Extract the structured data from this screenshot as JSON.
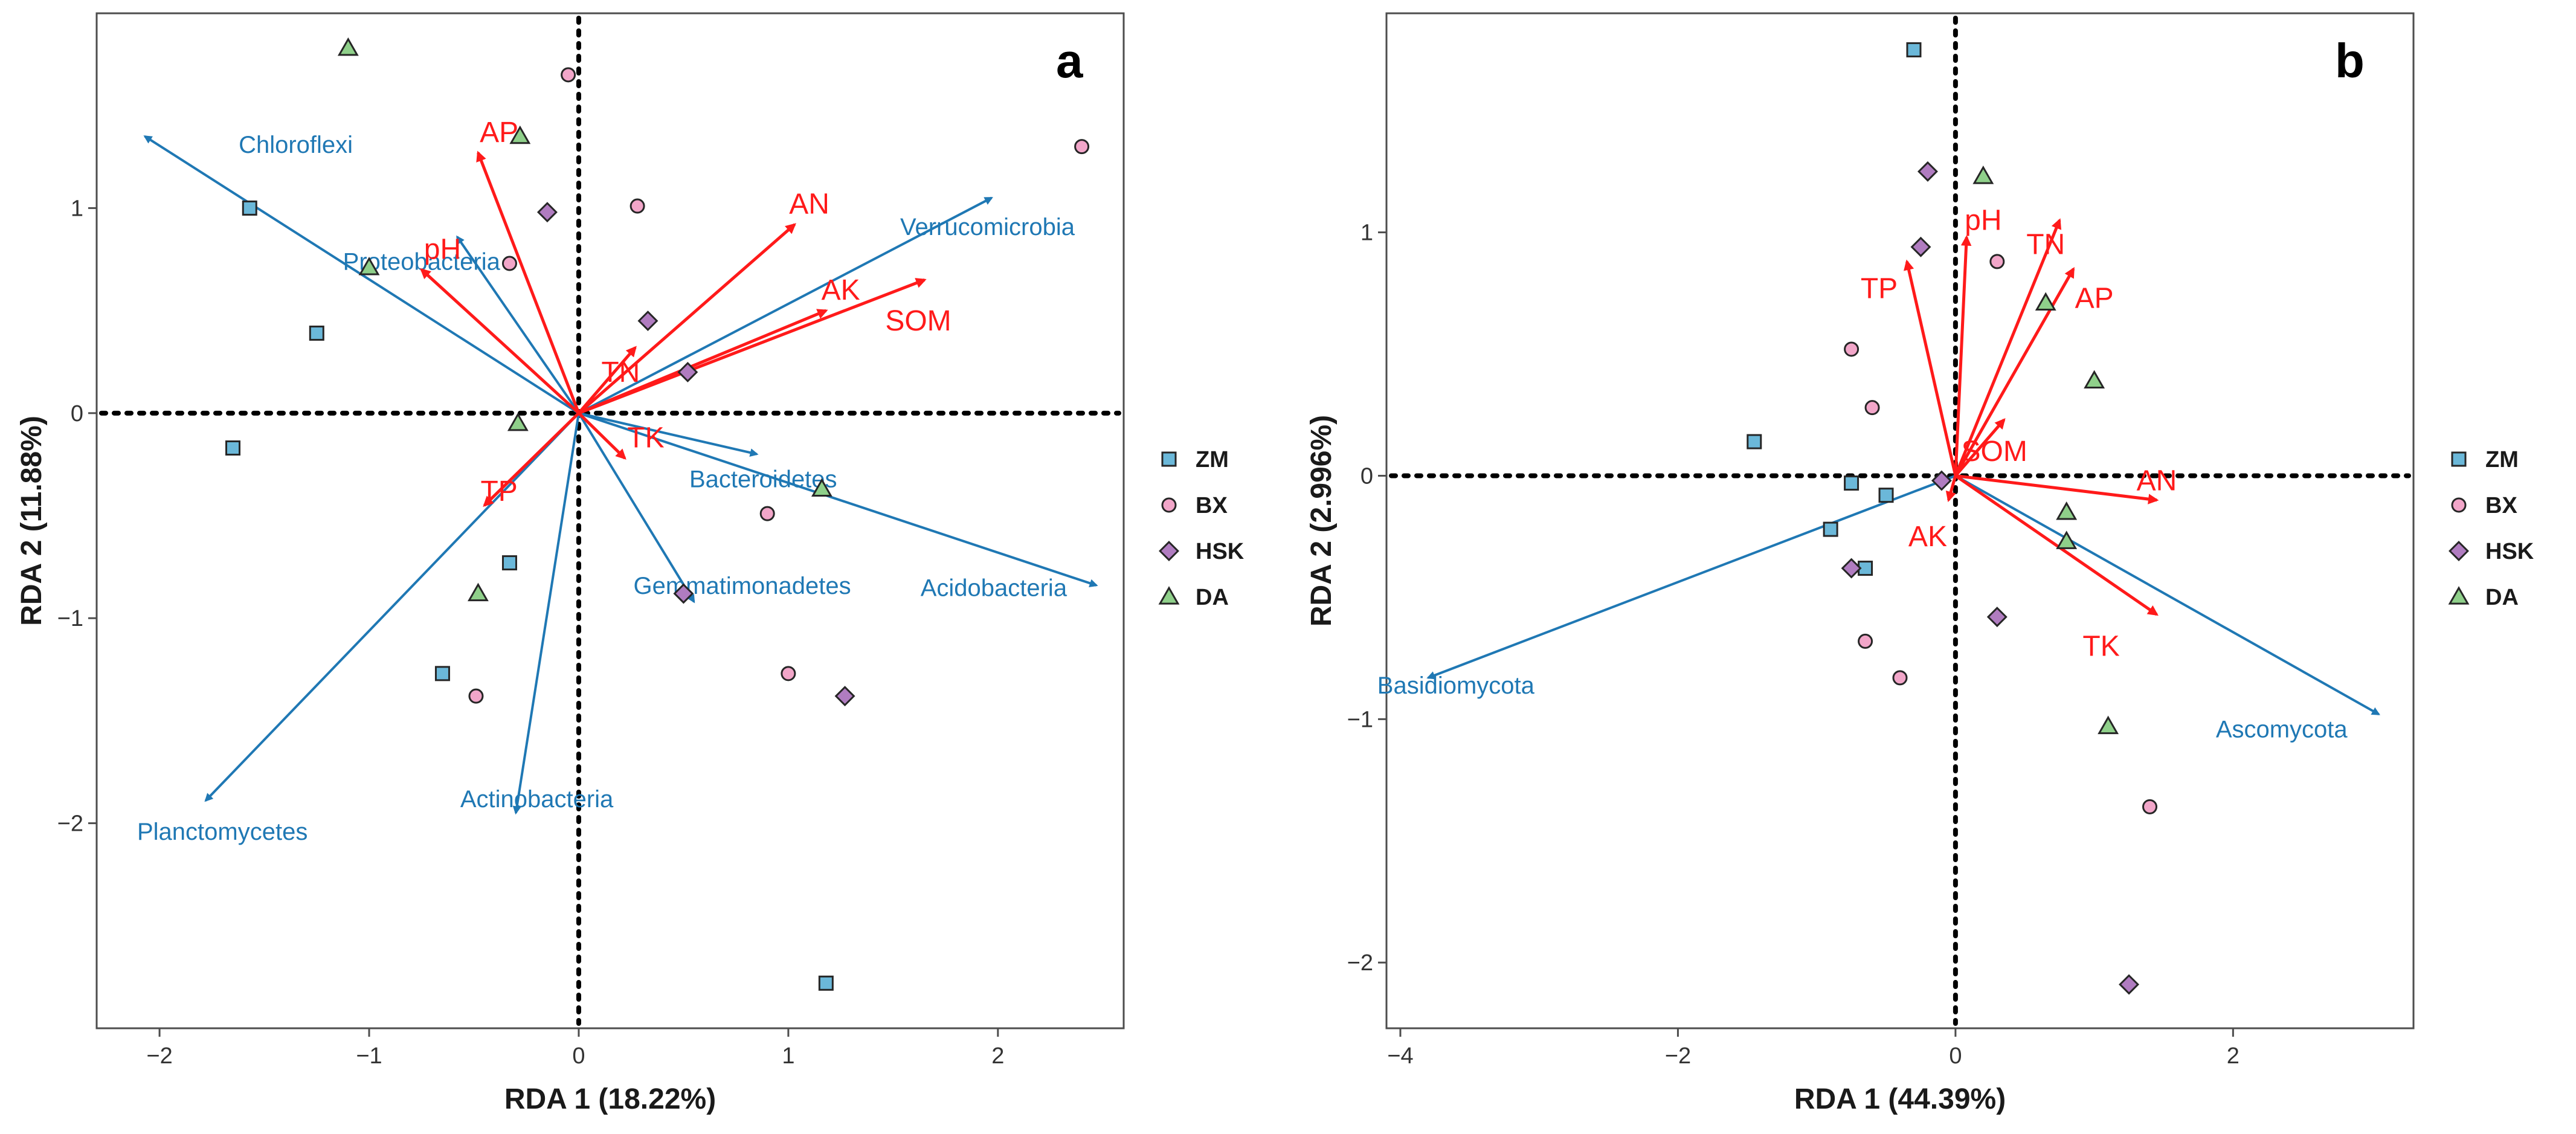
{
  "colors": {
    "env_arrow": "#ff1a1a",
    "taxon_arrow": "#1f78b4",
    "ZM": "#6bb8d9",
    "BX": "#f2a6c9",
    "HSK": "#b07cc0",
    "DA": "#8fd08a",
    "marker_outline": "#262626"
  },
  "legend": {
    "items": [
      {
        "label": "ZM",
        "shape": "square"
      },
      {
        "label": "BX",
        "shape": "circle"
      },
      {
        "label": "HSK",
        "shape": "diamond"
      },
      {
        "label": "DA",
        "shape": "triangle"
      }
    ]
  },
  "chart_data": [
    {
      "type": "scatter",
      "panel": "a",
      "xlabel": "RDA 1 (18.22%)",
      "ylabel": "RDA 2 (11.88%)",
      "xlim": [
        -2.3,
        2.6
      ],
      "ylim": [
        -3.0,
        1.95
      ],
      "xticks": [
        -2,
        -1,
        0,
        1,
        2
      ],
      "yticks": [
        -2,
        -1,
        0,
        1
      ],
      "points": {
        "ZM": [
          [
            -1.57,
            1.0
          ],
          [
            -1.25,
            0.39
          ],
          [
            -1.65,
            -0.17
          ],
          [
            -0.33,
            -0.73
          ],
          [
            -0.65,
            -1.27
          ],
          [
            1.18,
            -2.78
          ]
        ],
        "BX": [
          [
            -0.05,
            1.65
          ],
          [
            0.28,
            1.01
          ],
          [
            -0.33,
            0.73
          ],
          [
            0.9,
            -0.49
          ],
          [
            -0.49,
            -1.38
          ],
          [
            1.0,
            -1.27
          ],
          [
            2.4,
            1.3
          ]
        ],
        "HSK": [
          [
            -0.15,
            0.98
          ],
          [
            0.33,
            0.45
          ],
          [
            0.52,
            0.2
          ],
          [
            0.5,
            -0.88
          ],
          [
            1.27,
            -1.38
          ]
        ],
        "DA": [
          [
            -1.1,
            1.78
          ],
          [
            -0.28,
            1.35
          ],
          [
            -1.0,
            0.71
          ],
          [
            -0.29,
            -0.05
          ],
          [
            1.16,
            -0.37
          ],
          [
            -0.48,
            -0.88
          ]
        ]
      },
      "env_vectors": [
        {
          "label": "AP",
          "x": -0.48,
          "y": 1.27,
          "lx": -0.38,
          "ly": 1.37
        },
        {
          "label": "pH",
          "x": -0.75,
          "y": 0.7,
          "lx": -0.65,
          "ly": 0.8
        },
        {
          "label": "AN",
          "x": 1.03,
          "y": 0.92,
          "lx": 1.1,
          "ly": 1.02
        },
        {
          "label": "AK",
          "x": 1.18,
          "y": 0.5,
          "lx": 1.25,
          "ly": 0.6
        },
        {
          "label": "SOM",
          "x": 1.65,
          "y": 0.65,
          "lx": 1.62,
          "ly": 0.45
        },
        {
          "label": "TN",
          "x": 0.27,
          "y": 0.32,
          "lx": 0.2,
          "ly": 0.2
        },
        {
          "label": "TK",
          "x": 0.22,
          "y": -0.22,
          "lx": 0.32,
          "ly": -0.12
        },
        {
          "label": "TP",
          "x": -0.45,
          "y": -0.45,
          "lx": -0.38,
          "ly": -0.38
        }
      ],
      "taxa_vectors": [
        {
          "label": "Chloroflexi",
          "x": -2.07,
          "y": 1.35,
          "lx": -1.35,
          "ly": 1.31
        },
        {
          "label": "Proteobacteria",
          "x": -0.58,
          "y": 0.86,
          "lx": -0.75,
          "ly": 0.74
        },
        {
          "label": "Verrucomicrobia",
          "x": 1.97,
          "y": 1.05,
          "lx": 1.95,
          "ly": 0.91
        },
        {
          "label": "Bacteroidetes",
          "x": 0.85,
          "y": -0.2,
          "lx": 0.88,
          "ly": -0.32
        },
        {
          "label": "Acidobacteria",
          "x": 2.47,
          "y": -0.84,
          "lx": 1.98,
          "ly": -0.85
        },
        {
          "label": "Gemmatimonadetes",
          "x": 0.55,
          "y": -0.92,
          "lx": 0.78,
          "ly": -0.84
        },
        {
          "label": "Actinobacteria",
          "x": -0.3,
          "y": -1.95,
          "lx": -0.2,
          "ly": -1.88
        },
        {
          "label": "Planctomycetes",
          "x": -1.78,
          "y": -1.89,
          "lx": -1.7,
          "ly": -2.04
        }
      ]
    },
    {
      "type": "scatter",
      "panel": "b",
      "xlabel": "RDA 1 (44.39%)",
      "ylabel": "RDA 2 (2.996%)",
      "xlim": [
        -4.1,
        3.3
      ],
      "ylim": [
        -2.27,
        1.9
      ],
      "xticks": [
        -4,
        -2,
        0,
        2
      ],
      "yticks": [
        -2,
        -1,
        0,
        1
      ],
      "points": {
        "ZM": [
          [
            -0.3,
            1.75
          ],
          [
            -1.45,
            0.14
          ],
          [
            -0.75,
            -0.03
          ],
          [
            -0.5,
            -0.08
          ],
          [
            -0.9,
            -0.22
          ],
          [
            -0.65,
            -0.38
          ]
        ],
        "BX": [
          [
            -0.75,
            0.52
          ],
          [
            -0.6,
            0.28
          ],
          [
            0.3,
            0.88
          ],
          [
            -0.65,
            -0.68
          ],
          [
            -0.4,
            -0.83
          ],
          [
            1.4,
            -1.36
          ]
        ],
        "HSK": [
          [
            -0.2,
            1.25
          ],
          [
            -0.25,
            0.94
          ],
          [
            -0.1,
            -0.02
          ],
          [
            -0.75,
            -0.38
          ],
          [
            0.3,
            -0.58
          ],
          [
            1.25,
            -2.09
          ]
        ],
        "DA": [
          [
            0.2,
            1.23
          ],
          [
            0.65,
            0.71
          ],
          [
            1.0,
            0.39
          ],
          [
            0.8,
            -0.15
          ],
          [
            0.8,
            -0.27
          ],
          [
            1.1,
            -1.03
          ]
        ]
      },
      "env_vectors": [
        {
          "label": "pH",
          "x": 0.08,
          "y": 0.98,
          "lx": 0.2,
          "ly": 1.05
        },
        {
          "label": "TN",
          "x": 0.75,
          "y": 1.05,
          "lx": 0.65,
          "ly": 0.95
        },
        {
          "label": "TP",
          "x": -0.35,
          "y": 0.88,
          "lx": -0.55,
          "ly": 0.77
        },
        {
          "label": "AP",
          "x": 0.85,
          "y": 0.85,
          "lx": 1.0,
          "ly": 0.73
        },
        {
          "label": "SOM",
          "x": 0.35,
          "y": 0.23,
          "lx": 0.28,
          "ly": 0.1
        },
        {
          "label": "AN",
          "x": 1.45,
          "y": -0.1,
          "lx": 1.45,
          "ly": -0.02
        },
        {
          "label": "AK",
          "x": -0.05,
          "y": -0.1,
          "lx": -0.2,
          "ly": -0.25
        },
        {
          "label": "TK",
          "x": 1.45,
          "y": -0.57,
          "lx": 1.05,
          "ly": -0.7
        }
      ],
      "taxa_vectors": [
        {
          "label": "Basidiomycota",
          "x": -3.8,
          "y": -0.83,
          "lx": -3.6,
          "ly": -0.86
        },
        {
          "label": "Ascomycota",
          "x": 3.05,
          "y": -0.98,
          "lx": 2.35,
          "ly": -1.04
        }
      ]
    }
  ]
}
